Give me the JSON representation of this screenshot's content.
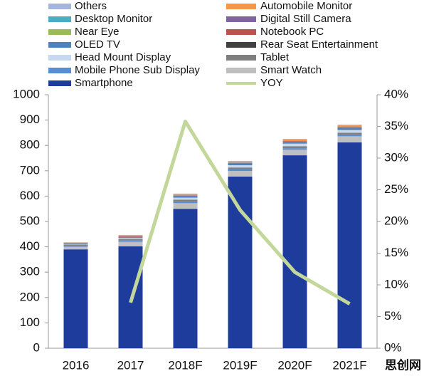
{
  "chart_data": {
    "type": "bar",
    "categories": [
      "2016",
      "2017",
      "2018F",
      "2019F",
      "2020F",
      "2021F"
    ],
    "series": [
      {
        "name": "Others",
        "color": "#a6b6da",
        "values": [
          1,
          2,
          2,
          2,
          2,
          3
        ]
      },
      {
        "name": "Automobile Monitor",
        "color": "#f79646",
        "values": [
          1,
          2,
          3,
          3,
          4,
          4
        ]
      },
      {
        "name": "Desktop Monitor",
        "color": "#4bacc6",
        "values": [
          0,
          1,
          1,
          1,
          1,
          1
        ]
      },
      {
        "name": "Digital Still Camera",
        "color": "#8064a2",
        "values": [
          1,
          1,
          1,
          1,
          1,
          1
        ]
      },
      {
        "name": "Near Eye",
        "color": "#9bbb59",
        "values": [
          0,
          0,
          1,
          1,
          1,
          1
        ]
      },
      {
        "name": "Notebook PC",
        "color": "#c0504d",
        "values": [
          1,
          2,
          3,
          3,
          3,
          3
        ]
      },
      {
        "name": "OLED TV",
        "color": "#4f81bd",
        "values": [
          2,
          3,
          4,
          5,
          6,
          7
        ]
      },
      {
        "name": "Rear Seat Entertainment",
        "color": "#404040",
        "values": [
          1,
          1,
          1,
          1,
          1,
          1
        ]
      },
      {
        "name": "Head Mount Display",
        "color": "#c6d9f1",
        "values": [
          2,
          4,
          8,
          9,
          10,
          11
        ]
      },
      {
        "name": "Tablet",
        "color": "#7f7f7f",
        "values": [
          5,
          6,
          8,
          8,
          8,
          8
        ]
      },
      {
        "name": "Mobile Phone Sub Display",
        "color": "#558ed5",
        "values": [
          4,
          5,
          6,
          6,
          6,
          6
        ]
      },
      {
        "name": "Smart Watch",
        "color": "#bfbfbf",
        "values": [
          10,
          18,
          22,
          22,
          22,
          24
        ]
      },
      {
        "name": "Smartphone",
        "color": "#1d3c9c",
        "values": [
          390,
          402,
          550,
          677,
          761,
          812
        ]
      },
      {
        "name": "YOY",
        "color": "#c4d79b",
        "type": "line",
        "axis": "y2",
        "values": [
          null,
          7.2,
          35.8,
          21.8,
          12,
          7
        ]
      }
    ],
    "ylim": [
      0,
      1000
    ],
    "yticks": [
      0,
      100,
      200,
      300,
      400,
      500,
      600,
      700,
      800,
      900,
      1000
    ],
    "y2lim": [
      0,
      40
    ],
    "y2ticks": [
      {
        "value": 0,
        "label": "0%"
      },
      {
        "value": 5,
        "label": "5%"
      },
      {
        "value": 10,
        "label": "10%"
      },
      {
        "value": 15,
        "label": "15%"
      },
      {
        "value": 20,
        "label": "20%"
      },
      {
        "value": 25,
        "label": "25%"
      },
      {
        "value": 30,
        "label": "30%"
      },
      {
        "value": 35,
        "label": "35%"
      },
      {
        "value": 40,
        "label": "40%"
      }
    ],
    "legend": "top",
    "watermark": "思创网"
  }
}
